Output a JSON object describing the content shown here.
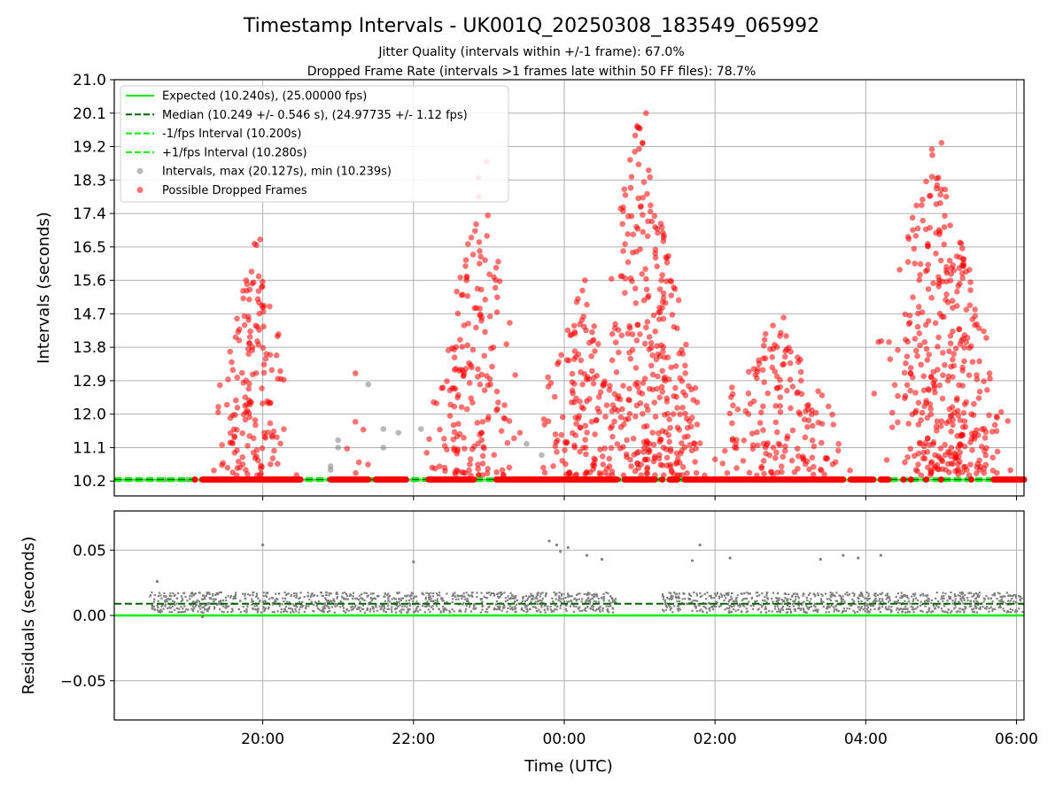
{
  "chart_data": {
    "type": "scatter",
    "title": "Timestamp Intervals - UK001Q_20250308_183549_065992",
    "subtitle_lines": [
      "Jitter Quality (intervals within +/-1 frame): 67.0%",
      "Dropped Frame Rate (intervals >1 frames late within 50 FF files): 78.7%"
    ],
    "xlabel": "Time (UTC)",
    "x_ticks": [
      "20:00",
      "22:00",
      "00:00",
      "02:00",
      "04:00",
      "06:00"
    ],
    "x_range_hours": [
      18.03,
      30.1
    ],
    "x_tick_hours": [
      20,
      22,
      24,
      26,
      28,
      30
    ],
    "grid": true,
    "panels": [
      {
        "name": "intervals",
        "ylabel": "Intervals (seconds)",
        "ylim": [
          9.8,
          21.0
        ],
        "y_ticks": [
          "21.0",
          "20.1",
          "19.2",
          "18.3",
          "17.4",
          "16.5",
          "15.6",
          "14.7",
          "13.8",
          "12.9",
          "12.0",
          "11.1",
          "10.2"
        ],
        "y_tick_values": [
          21.0,
          20.1,
          19.2,
          18.3,
          17.4,
          16.5,
          15.6,
          14.7,
          13.8,
          12.9,
          12.0,
          11.1,
          10.2
        ],
        "legend_position": "upper-left",
        "series": [
          {
            "name": "Expected (10.240s), (25.00000 fps)",
            "kind": "line",
            "style": "solid",
            "color": "#00ee00",
            "value": 10.24
          },
          {
            "name": "Median (10.249 +/- 0.546 s), (24.97735 +/- 1.12 fps)",
            "kind": "line",
            "style": "dashed",
            "color": "#006400",
            "value": 10.249
          },
          {
            "name": "-1/fps Interval (10.200s)",
            "kind": "line",
            "style": "dashed",
            "color": "#00ee00",
            "value": 10.2
          },
          {
            "name": "+1/fps Interval (10.280s)",
            "kind": "line",
            "style": "dashed",
            "color": "#00ee00",
            "value": 10.28
          },
          {
            "name": "Intervals, max (20.127s), min (10.239s)",
            "kind": "scatter",
            "color": "#808080",
            "points": [
              [
                20.9,
                10.5
              ],
              [
                20.9,
                10.6
              ],
              [
                21.0,
                11.1
              ],
              [
                21.0,
                11.3
              ],
              [
                21.4,
                12.8
              ],
              [
                21.6,
                11.1
              ],
              [
                21.6,
                11.6
              ],
              [
                21.8,
                11.5
              ],
              [
                22.1,
                11.6
              ],
              [
                23.5,
                11.2
              ],
              [
                23.7,
                10.9
              ],
              [
                18.7,
                10.24
              ],
              [
                19.0,
                10.24
              ],
              [
                21.3,
                10.24
              ],
              [
                22.0,
                10.24
              ],
              [
                27.1,
                10.24
              ],
              [
                28.5,
                10.24
              ]
            ]
          },
          {
            "name": "Possible Dropped Frames",
            "kind": "scatter",
            "color": "#ff0000",
            "clusters": [
              {
                "x_range": [
                  19.2,
                  20.5
                ],
                "y_max": 16.7,
                "peak_hour": 19.9,
                "count": 160
              },
              {
                "x_range": [
                  20.9,
                  21.5
                ],
                "y_max": 13.1,
                "peak_hour": 21.2,
                "count": 6
              },
              {
                "x_range": [
                  22.1,
                  23.5
                ],
                "y_max": 18.8,
                "peak_hour": 22.9,
                "count": 180
              },
              {
                "x_range": [
                  23.5,
                  25.0
                ],
                "y_max": 15.6,
                "peak_hour": 24.2,
                "count": 150
              },
              {
                "x_range": [
                  24.3,
                  26.0
                ],
                "y_max": 20.1,
                "peak_hour": 25.0,
                "count": 320
              },
              {
                "x_range": [
                  25.8,
                  28.0
                ],
                "y_max": 14.6,
                "peak_hour": 26.8,
                "count": 170
              },
              {
                "x_range": [
                  28.0,
                  30.1
                ],
                "y_max": 19.3,
                "peak_hour": 28.9,
                "count": 380
              }
            ],
            "baseline_value": 10.24,
            "baseline_segments_hours": [
              [
                19.2,
                20.5
              ],
              [
                20.9,
                21.4
              ],
              [
                21.5,
                21.9
              ],
              [
                22.2,
                22.8
              ],
              [
                23.1,
                24.7
              ],
              [
                24.8,
                25.2
              ],
              [
                25.4,
                25.5
              ],
              [
                25.6,
                27.7
              ],
              [
                27.8,
                28.1
              ],
              [
                28.3,
                28.2
              ],
              [
                28.5,
                28.5
              ],
              [
                29.7,
                30.1
              ]
            ],
            "baseline_dots_hours": [
              19.1,
              21.2,
              25.3,
              28.6,
              28.8,
              29.0,
              29.4
            ]
          }
        ]
      },
      {
        "name": "residuals",
        "ylabel": "Residuals (seconds)",
        "ylim": [
          -0.08,
          0.08
        ],
        "y_ticks": [
          "0.05",
          "0.00",
          "−0.05"
        ],
        "y_tick_values": [
          0.05,
          0.0,
          -0.05
        ],
        "series": [
          {
            "name": "expected",
            "kind": "line",
            "style": "solid",
            "color": "#00ee00",
            "value": 0.0
          },
          {
            "name": "median",
            "kind": "line",
            "style": "dashed",
            "color": "#006400",
            "value": 0.009
          },
          {
            "name": "residuals",
            "kind": "scatter",
            "color": "#808080",
            "segments_hours": [
              [
                18.5,
                19.1
              ],
              [
                19.1,
                24.7
              ],
              [
                25.3,
                30.1
              ]
            ],
            "outliers": [
              [
                18.6,
                0.026
              ],
              [
                20.0,
                0.054
              ],
              [
                22.0,
                0.041
              ],
              [
                23.8,
                0.057
              ],
              [
                23.9,
                0.054
              ],
              [
                23.95,
                0.049
              ],
              [
                24.05,
                0.052
              ],
              [
                24.3,
                0.046
              ],
              [
                24.5,
                0.043
              ],
              [
                25.7,
                0.042
              ],
              [
                25.8,
                0.054
              ],
              [
                26.2,
                0.044
              ],
              [
                27.4,
                0.043
              ],
              [
                27.7,
                0.046
              ],
              [
                27.9,
                0.044
              ],
              [
                28.2,
                0.046
              ],
              [
                19.2,
                -0.001
              ]
            ]
          }
        ]
      }
    ]
  }
}
